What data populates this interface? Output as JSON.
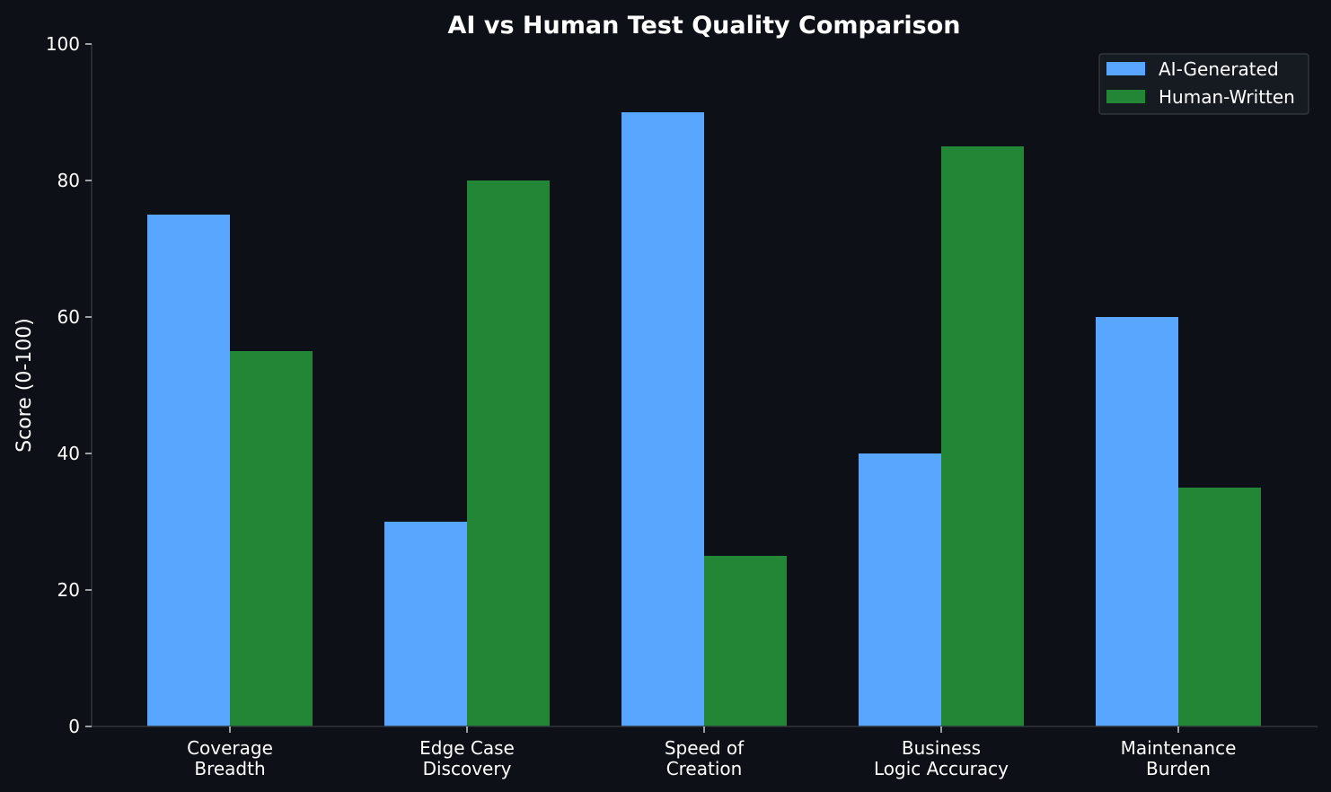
{
  "chart_data": {
    "type": "bar",
    "title": "AI vs Human Test Quality Comparison",
    "xlabel": "",
    "ylabel": "Score (0-100)",
    "ylim": [
      0,
      100
    ],
    "yticks": [
      0,
      20,
      40,
      60,
      80,
      100
    ],
    "grid": false,
    "legend_position": "top-right",
    "categories": [
      [
        "Coverage",
        "Breadth"
      ],
      [
        "Edge Case",
        "Discovery"
      ],
      [
        "Speed of",
        "Creation"
      ],
      [
        "Business",
        "Logic Accuracy"
      ],
      [
        "Maintenance",
        "Burden"
      ]
    ],
    "series": [
      {
        "name": "AI-Generated",
        "color": "#58a6ff",
        "values": [
          75,
          30,
          90,
          40,
          60
        ]
      },
      {
        "name": "Human-Written",
        "color": "#238636",
        "values": [
          55,
          80,
          25,
          85,
          35
        ]
      }
    ],
    "colors": {
      "background": "#0d1117",
      "axis": "#30363d",
      "text": "#ffffff",
      "legend_bg": "#161b22"
    }
  }
}
